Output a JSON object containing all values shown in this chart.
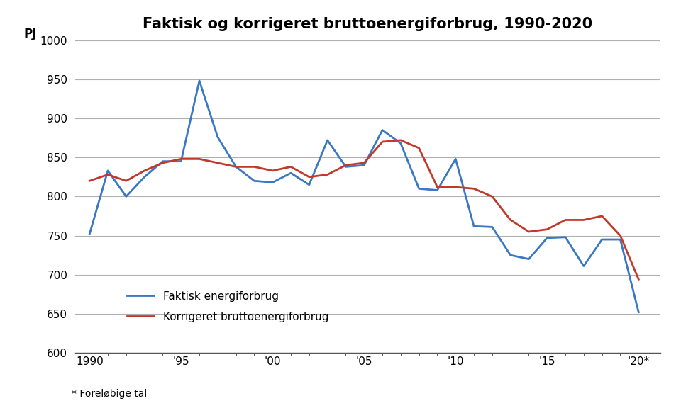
{
  "title": "Faktisk og korrigeret bruttoenergiforbrug, 1990-2020",
  "ylabel": "PJ",
  "footnote": "* Foreløbige tal",
  "years": [
    1990,
    1991,
    1992,
    1993,
    1994,
    1995,
    1996,
    1997,
    1998,
    1999,
    2000,
    2001,
    2002,
    2003,
    2004,
    2005,
    2006,
    2007,
    2008,
    2009,
    2010,
    2011,
    2012,
    2013,
    2014,
    2015,
    2016,
    2017,
    2018,
    2019,
    2020
  ],
  "faktisk": [
    752,
    833,
    800,
    825,
    845,
    845,
    948,
    876,
    838,
    820,
    818,
    830,
    815,
    872,
    838,
    840,
    885,
    868,
    810,
    808,
    848,
    762,
    761,
    725,
    720,
    747,
    748,
    711,
    745,
    745,
    652
  ],
  "korrigeret": [
    820,
    828,
    820,
    833,
    843,
    848,
    848,
    843,
    838,
    838,
    833,
    838,
    825,
    828,
    840,
    843,
    870,
    872,
    862,
    812,
    812,
    810,
    800,
    770,
    755,
    758,
    770,
    770,
    775,
    750,
    694
  ],
  "faktisk_color": "#3B78C3",
  "korrigeret_color": "#C0392B",
  "ylim": [
    600,
    1000
  ],
  "yticks": [
    600,
    650,
    700,
    750,
    800,
    850,
    900,
    950,
    1000
  ],
  "xtick_labels": [
    "1990",
    "'95",
    "'00",
    "'05",
    "'10",
    "'15",
    "'20*"
  ],
  "xtick_positions": [
    1990,
    1995,
    2000,
    2005,
    2010,
    2015,
    2020
  ],
  "legend_labels": [
    "Faktisk energiforbrug",
    "Korrigeret bruttoenergiforbrug"
  ],
  "line_width": 2.0,
  "background_color": "#ffffff",
  "grid_color": "#b0b0b0"
}
